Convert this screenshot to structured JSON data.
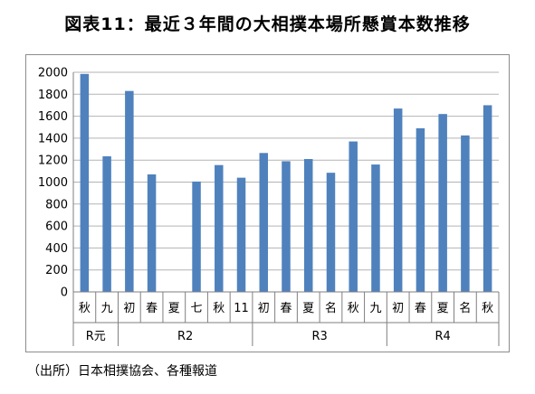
{
  "page": {
    "title": "図表11：最近３年間の大相撲本場所懸賞本数推移",
    "source": "（出所）日本相撲協会、各種報道"
  },
  "colors": {
    "bar": "#4F81BD",
    "grid": "#b3b3b3",
    "axis": "#7f7f7f",
    "text": "#000000"
  },
  "chart_data": {
    "type": "bar",
    "title": "",
    "xlabel": "",
    "ylabel": "",
    "ylim": [
      0,
      2000
    ],
    "yticks": [
      0,
      200,
      400,
      600,
      800,
      1000,
      1200,
      1400,
      1600,
      1800,
      2000
    ],
    "grid": true,
    "legend": "none",
    "categories": [
      "秋",
      "九",
      "初",
      "春",
      "夏",
      "七",
      "秋",
      "11",
      "初",
      "春",
      "夏",
      "名",
      "秋",
      "九",
      "初",
      "春",
      "夏",
      "名",
      "秋"
    ],
    "values": [
      1985,
      1235,
      1830,
      1070,
      null,
      1005,
      1155,
      1040,
      1265,
      1190,
      1210,
      1085,
      1370,
      1160,
      1670,
      1490,
      1620,
      1425,
      1700
    ],
    "groups": [
      {
        "label": "R元",
        "count": 2
      },
      {
        "label": "R2",
        "count": 6
      },
      {
        "label": "R3",
        "count": 6
      },
      {
        "label": "R4",
        "count": 5
      }
    ]
  }
}
